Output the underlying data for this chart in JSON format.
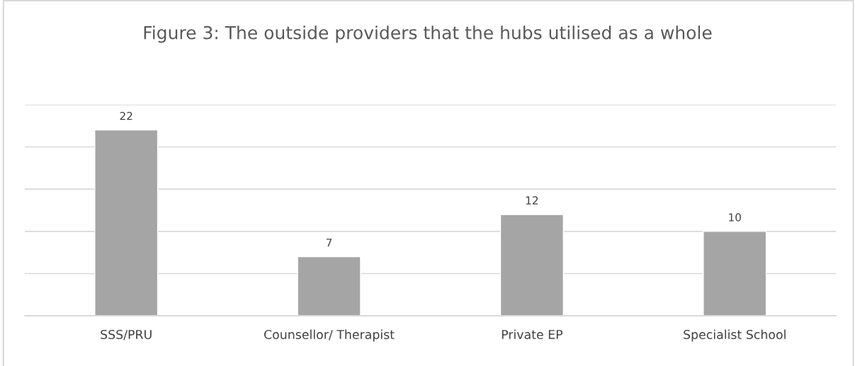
{
  "chart_data": {
    "type": "bar",
    "title": "Figure 3: The outside providers that the hubs utilised as a whole",
    "categories": [
      "SSS/PRU",
      "Counsellor/ Therapist",
      "Private EP",
      "Specialist School"
    ],
    "values": [
      22,
      7,
      12,
      10
    ],
    "color": "#a5a5a5",
    "ylim": [
      0,
      25
    ],
    "yticks": [
      {
        "value": 0,
        "label": null
      },
      {
        "value": 5,
        "label": null
      },
      {
        "value": 10,
        "label": null
      },
      {
        "value": 15,
        "label": null
      },
      {
        "value": 20,
        "label": null
      },
      {
        "value": 25,
        "label": null
      }
    ],
    "tick_labels": "x",
    "grid": "y",
    "data_labels": true,
    "legend": false
  }
}
